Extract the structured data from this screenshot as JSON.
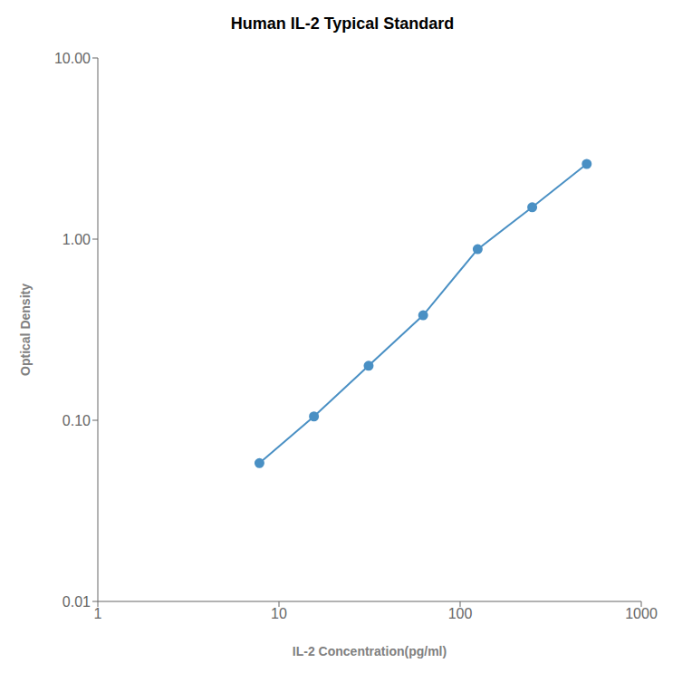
{
  "chart_data": {
    "type": "line",
    "title": "Human IL-2 Typical Standard",
    "xlabel": "IL-2 Concentration(pg/ml)",
    "ylabel": "Optical Density",
    "x": [
      7.8,
      15.6,
      31.25,
      62.5,
      125,
      250,
      500
    ],
    "values": [
      0.058,
      0.105,
      0.2,
      0.38,
      0.88,
      1.5,
      2.6
    ],
    "color": "#4a90c4",
    "marker": "circle",
    "log": true,
    "grid": false,
    "xlim": [
      1,
      1000
    ],
    "ylim": [
      0.01,
      10.0
    ],
    "xticks": [
      1,
      10,
      100,
      1000
    ],
    "yticks": [
      0.01,
      {
        "value": 0.1,
        "label": "0.10"
      },
      {
        "value": 1,
        "label": "1.00"
      },
      {
        "value": 10,
        "label": "10.00"
      }
    ]
  }
}
